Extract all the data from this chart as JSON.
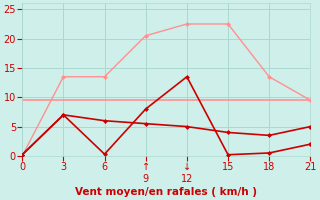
{
  "xlabel": "Vent moyen/en rafales ( km/h )",
  "xlim": [
    0,
    21
  ],
  "ylim": [
    0,
    26
  ],
  "xticks": [
    0,
    3,
    6,
    9,
    12,
    15,
    18,
    21
  ],
  "xtick_labels": [
    "0",
    "3",
    "6",
    "↑\n9",
    "↓\n12",
    "15",
    "18",
    "21"
  ],
  "yticks": [
    0,
    5,
    10,
    15,
    20,
    25
  ],
  "bg_color": "#cff0ea",
  "grid_color": "#aad8d0",
  "line1_x": [
    0,
    3,
    6,
    9,
    12,
    15,
    18,
    21
  ],
  "line1_y": [
    9.5,
    9.5,
    9.5,
    9.5,
    9.5,
    9.5,
    9.5,
    9.5
  ],
  "line1_color": "#ff9090",
  "line1_lw": 1.2,
  "line2_x": [
    0,
    3,
    6,
    9,
    12,
    15,
    18,
    21
  ],
  "line2_y": [
    0,
    13.5,
    13.5,
    20.5,
    22.5,
    22.5,
    13.5,
    9.5
  ],
  "line2_color": "#ff9090",
  "line2_lw": 1.0,
  "line2_marker": "D",
  "line2_ms": 2,
  "line3_x": [
    0,
    3,
    6,
    9,
    12,
    15,
    18,
    21
  ],
  "line3_y": [
    0.2,
    7,
    6,
    5.5,
    5.0,
    4.0,
    3.5,
    5.0
  ],
  "line3_color": "#cc0000",
  "line3_lw": 1.2,
  "line3_marker": "D",
  "line3_ms": 2,
  "line4_x": [
    0,
    3,
    6,
    9,
    12,
    15,
    18,
    21
  ],
  "line4_y": [
    0.2,
    7.0,
    0.3,
    8.0,
    13.5,
    0.2,
    0.5,
    2.0
  ],
  "line4_color": "#cc0000",
  "line4_lw": 1.2,
  "line4_marker": "D",
  "line4_ms": 2,
  "tick_color": "#cc0000",
  "label_color": "#cc0000",
  "label_fontsize": 7.5,
  "tick_fontsize": 7
}
